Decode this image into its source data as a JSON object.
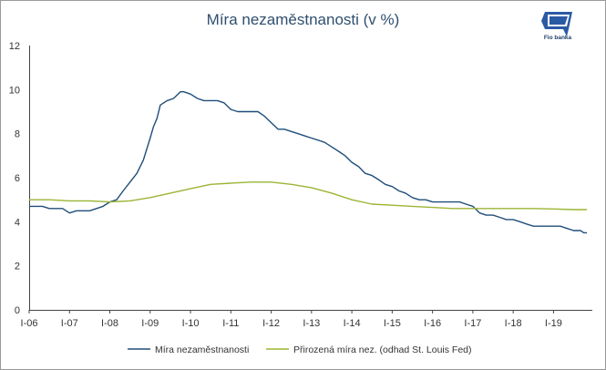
{
  "chart_data": {
    "type": "line",
    "title": "Míra nezaměstnanosti (v %)",
    "xlabel": "",
    "ylabel": "",
    "x_tick_labels": [
      "I-06",
      "I-07",
      "I-08",
      "I-09",
      "I-10",
      "I-11",
      "I-12",
      "I-13",
      "I-14",
      "I-15",
      "I-16",
      "I-17",
      "I-18",
      "I-19"
    ],
    "x_start_year": 2006,
    "x_end_year": 2019.917,
    "ylim": [
      0,
      12
    ],
    "y_ticks": [
      0,
      2,
      4,
      6,
      8,
      10,
      12
    ],
    "grid": false,
    "legend_position": "bottom",
    "series": [
      {
        "name": "Míra nezaměstnanosti",
        "color": "#1f4e79",
        "points": [
          [
            2006.0,
            4.7
          ],
          [
            2006.33,
            4.7
          ],
          [
            2006.5,
            4.6
          ],
          [
            2006.83,
            4.6
          ],
          [
            2007.0,
            4.4
          ],
          [
            2007.17,
            4.5
          ],
          [
            2007.5,
            4.5
          ],
          [
            2007.67,
            4.6
          ],
          [
            2007.83,
            4.7
          ],
          [
            2008.0,
            4.9
          ],
          [
            2008.17,
            5.0
          ],
          [
            2008.33,
            5.4
          ],
          [
            2008.5,
            5.8
          ],
          [
            2008.67,
            6.2
          ],
          [
            2008.83,
            6.8
          ],
          [
            2009.0,
            7.8
          ],
          [
            2009.08,
            8.3
          ],
          [
            2009.17,
            8.7
          ],
          [
            2009.25,
            9.3
          ],
          [
            2009.42,
            9.5
          ],
          [
            2009.58,
            9.6
          ],
          [
            2009.75,
            9.9
          ],
          [
            2009.83,
            9.9
          ],
          [
            2010.0,
            9.8
          ],
          [
            2010.17,
            9.6
          ],
          [
            2010.33,
            9.5
          ],
          [
            2010.5,
            9.5
          ],
          [
            2010.67,
            9.5
          ],
          [
            2010.83,
            9.4
          ],
          [
            2011.0,
            9.1
          ],
          [
            2011.17,
            9.0
          ],
          [
            2011.33,
            9.0
          ],
          [
            2011.5,
            9.0
          ],
          [
            2011.67,
            9.0
          ],
          [
            2011.83,
            8.8
          ],
          [
            2012.0,
            8.5
          ],
          [
            2012.17,
            8.2
          ],
          [
            2012.33,
            8.2
          ],
          [
            2012.5,
            8.1
          ],
          [
            2012.67,
            8.0
          ],
          [
            2012.83,
            7.9
          ],
          [
            2013.0,
            7.8
          ],
          [
            2013.17,
            7.7
          ],
          [
            2013.33,
            7.6
          ],
          [
            2013.5,
            7.4
          ],
          [
            2013.67,
            7.2
          ],
          [
            2013.83,
            7.0
          ],
          [
            2014.0,
            6.7
          ],
          [
            2014.17,
            6.5
          ],
          [
            2014.33,
            6.2
          ],
          [
            2014.5,
            6.1
          ],
          [
            2014.67,
            5.9
          ],
          [
            2014.83,
            5.7
          ],
          [
            2015.0,
            5.6
          ],
          [
            2015.17,
            5.4
          ],
          [
            2015.33,
            5.3
          ],
          [
            2015.5,
            5.1
          ],
          [
            2015.67,
            5.0
          ],
          [
            2015.83,
            5.0
          ],
          [
            2016.0,
            4.9
          ],
          [
            2016.33,
            4.9
          ],
          [
            2016.67,
            4.9
          ],
          [
            2016.83,
            4.8
          ],
          [
            2017.0,
            4.7
          ],
          [
            2017.17,
            4.4
          ],
          [
            2017.33,
            4.3
          ],
          [
            2017.5,
            4.3
          ],
          [
            2017.67,
            4.2
          ],
          [
            2017.83,
            4.1
          ],
          [
            2018.0,
            4.1
          ],
          [
            2018.17,
            4.0
          ],
          [
            2018.33,
            3.9
          ],
          [
            2018.5,
            3.8
          ],
          [
            2018.67,
            3.8
          ],
          [
            2018.83,
            3.8
          ],
          [
            2019.0,
            3.8
          ],
          [
            2019.17,
            3.8
          ],
          [
            2019.33,
            3.7
          ],
          [
            2019.5,
            3.6
          ],
          [
            2019.67,
            3.6
          ],
          [
            2019.75,
            3.5
          ],
          [
            2019.83,
            3.5
          ]
        ]
      },
      {
        "name": "Přirozená míra nez. (odhad St. Louis Fed)",
        "color": "#9bb534",
        "points": [
          [
            2006.0,
            5.0
          ],
          [
            2006.5,
            5.0
          ],
          [
            2007.0,
            4.95
          ],
          [
            2007.5,
            4.95
          ],
          [
            2008.0,
            4.9
          ],
          [
            2008.5,
            4.95
          ],
          [
            2009.0,
            5.1
          ],
          [
            2009.5,
            5.3
          ],
          [
            2010.0,
            5.5
          ],
          [
            2010.5,
            5.7
          ],
          [
            2011.0,
            5.75
          ],
          [
            2011.5,
            5.8
          ],
          [
            2012.0,
            5.8
          ],
          [
            2012.5,
            5.7
          ],
          [
            2013.0,
            5.55
          ],
          [
            2013.5,
            5.3
          ],
          [
            2014.0,
            5.0
          ],
          [
            2014.5,
            4.8
          ],
          [
            2015.0,
            4.75
          ],
          [
            2015.5,
            4.7
          ],
          [
            2016.0,
            4.65
          ],
          [
            2016.5,
            4.6
          ],
          [
            2017.0,
            4.6
          ],
          [
            2017.5,
            4.6
          ],
          [
            2018.0,
            4.6
          ],
          [
            2018.5,
            4.6
          ],
          [
            2019.0,
            4.58
          ],
          [
            2019.5,
            4.55
          ],
          [
            2019.83,
            4.55
          ]
        ]
      }
    ]
  }
}
